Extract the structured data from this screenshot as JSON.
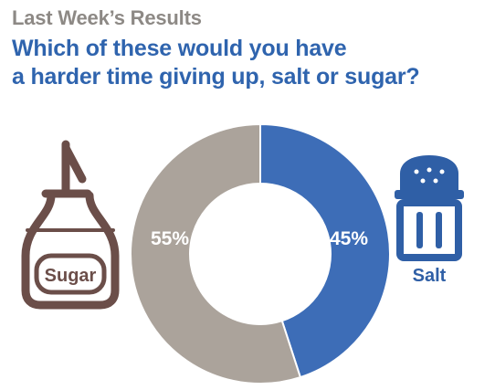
{
  "kicker": "Last Week’s Results",
  "title_lines": [
    "Which of these would you have",
    "a harder time giving up, salt or sugar?"
  ],
  "icons": {
    "sugar": {
      "name": "sugar-dispenser-icon",
      "label": "Sugar"
    },
    "salt": {
      "name": "salt-shaker-icon",
      "label": "Salt"
    }
  },
  "colors": {
    "sugar": "#aba39b",
    "salt": "#3d6db7",
    "sugar_icon": "#6b4e49",
    "salt_icon": "#2f5fa6",
    "kicker": "#8d8985",
    "title": "#2f64ae"
  },
  "chart_data": {
    "type": "pie",
    "donut": true,
    "categories": [
      "Salt",
      "Sugar"
    ],
    "values": [
      45,
      55
    ],
    "labels": [
      "45%",
      "55%"
    ],
    "title": "Which of these would you have a harder time giving up, salt or sugar?",
    "legend": "icons beside chart"
  }
}
